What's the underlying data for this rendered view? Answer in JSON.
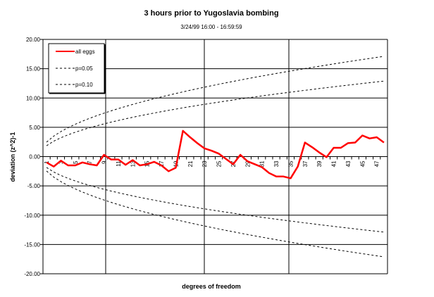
{
  "chart_data": {
    "type": "line",
    "title": "3 hours prior to Yugoslavia bombing",
    "subtitle": "3/24/99 16:00 - 16:59:59",
    "xlabel": "degrees of freedom",
    "ylabel": "deviation (z^2)-1",
    "ylim": [
      -20,
      20
    ],
    "yticks": [
      "20.00",
      "15.00",
      "10.00",
      "5.00",
      "0.00",
      "-5.00",
      "-10.00",
      "-15.00",
      "-20.00"
    ],
    "x": [
      1,
      2,
      3,
      4,
      5,
      6,
      7,
      8,
      9,
      10,
      11,
      12,
      13,
      14,
      15,
      16,
      17,
      18,
      19,
      20,
      21,
      22,
      23,
      24,
      25,
      26,
      27,
      28,
      29,
      30,
      31,
      32,
      33,
      34,
      35,
      36,
      37,
      38,
      39,
      40,
      41,
      42,
      43,
      44,
      45,
      46,
      47,
      48
    ],
    "xtick_labels": [
      "1",
      "3",
      "5",
      "7",
      "9",
      "11",
      "13",
      "15",
      "17",
      "19",
      "21",
      "23",
      "25",
      "27",
      "29",
      "31",
      "33",
      "35",
      "37",
      "39",
      "41",
      "43",
      "45",
      "47"
    ],
    "grid": true,
    "legend_placement": "top-left",
    "series": [
      {
        "name": "all eggs",
        "color": "#ff0000",
        "style": "solid",
        "values": [
          -1.0,
          -1.7,
          -0.7,
          -1.5,
          -1.5,
          -1.0,
          -1.3,
          -1.5,
          0.3,
          -0.5,
          -0.5,
          -1.4,
          -0.6,
          -1.5,
          -1.3,
          -0.9,
          -1.5,
          -2.5,
          -1.9,
          4.4,
          3.3,
          2.3,
          1.4,
          1.0,
          0.5,
          -0.4,
          -1.3,
          0.3,
          -0.8,
          -1.3,
          -1.8,
          -2.8,
          -3.4,
          -3.4,
          -3.7,
          -1.7,
          2.4,
          1.6,
          0.7,
          -0.1,
          1.5,
          1.5,
          2.3,
          2.4,
          3.6,
          3.1,
          3.3,
          2.4
        ]
      },
      {
        "name": "p=0.05",
        "color": "#000000",
        "style": "dashed",
        "coef": 2.47
      },
      {
        "name": "p=0.10",
        "color": "#000000",
        "style": "dashed",
        "coef": 1.86
      }
    ]
  }
}
